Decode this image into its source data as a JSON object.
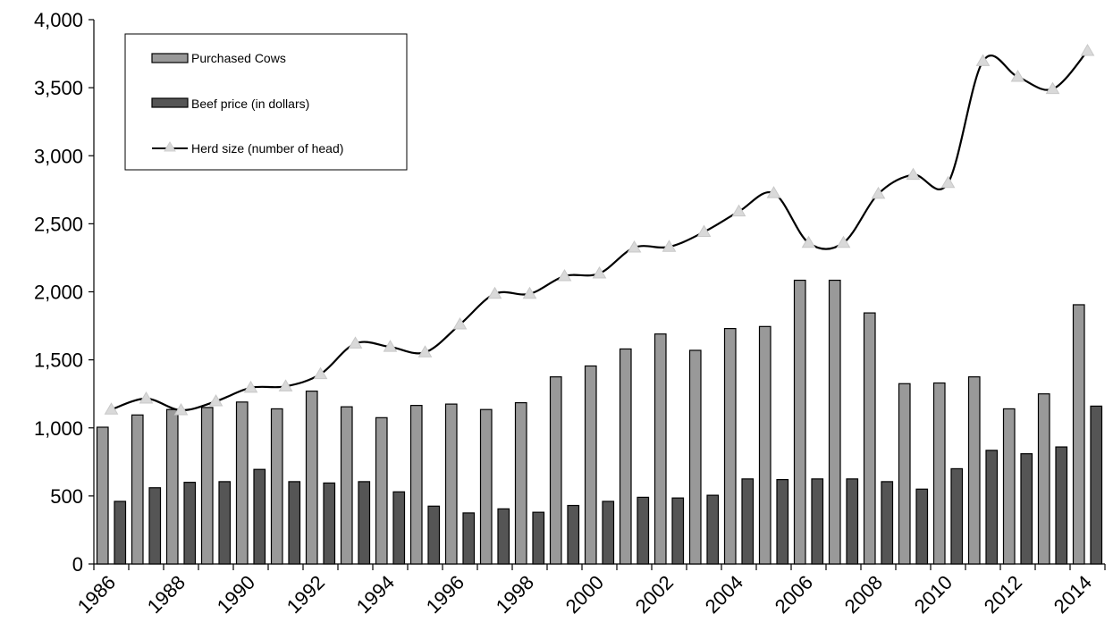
{
  "chart_data": {
    "type": "bar",
    "x": [
      1986,
      1987,
      1988,
      1989,
      1990,
      1991,
      1992,
      1993,
      1994,
      1995,
      1996,
      1997,
      1998,
      1999,
      2000,
      2001,
      2002,
      2003,
      2004,
      2005,
      2006,
      2007,
      2008,
      2009,
      2010,
      2011,
      2012,
      2013,
      2014
    ],
    "x_tick_labels": [
      "1986",
      "1988",
      "1990",
      "1992",
      "1994",
      "1996",
      "1998",
      "2000",
      "2002",
      "2004",
      "2006",
      "2008",
      "2010",
      "2012",
      "2014"
    ],
    "y_tick_labels": [
      "0",
      "500",
      "1,000",
      "1,500",
      "2,000",
      "2,500",
      "3,000",
      "3,500",
      "4,000"
    ],
    "ylim": [
      0,
      4000
    ],
    "grid": false,
    "legend_position": "top-left",
    "series": [
      {
        "name": "Purchased Cows",
        "kind": "bar",
        "color": "#999999",
        "values": [
          1005,
          1095,
          1135,
          1150,
          1190,
          1140,
          1270,
          1155,
          1075,
          1165,
          1175,
          1135,
          1185,
          1375,
          1455,
          1580,
          1690,
          1570,
          1730,
          1745,
          2085,
          2085,
          1845,
          1325,
          1330,
          1375,
          1140,
          1250,
          1905
        ]
      },
      {
        "name": "Beef price (in dollars)",
        "kind": "bar",
        "color": "#555555",
        "values": [
          460,
          560,
          600,
          605,
          695,
          605,
          595,
          605,
          530,
          425,
          375,
          405,
          380,
          430,
          460,
          490,
          485,
          505,
          625,
          620,
          625,
          625,
          605,
          550,
          700,
          835,
          810,
          860,
          1160
        ]
      },
      {
        "name": "Herd size (number of head)",
        "kind": "line",
        "color": "#000000",
        "marker_color": "#d9d9d9",
        "values": [
          1135,
          1215,
          1130,
          1195,
          1295,
          1305,
          1395,
          1620,
          1595,
          1555,
          1760,
          1985,
          1985,
          2115,
          2135,
          2325,
          2330,
          2440,
          2590,
          2725,
          2360,
          2360,
          2720,
          2860,
          2800,
          3695,
          3580,
          3490,
          3770
        ]
      }
    ]
  }
}
